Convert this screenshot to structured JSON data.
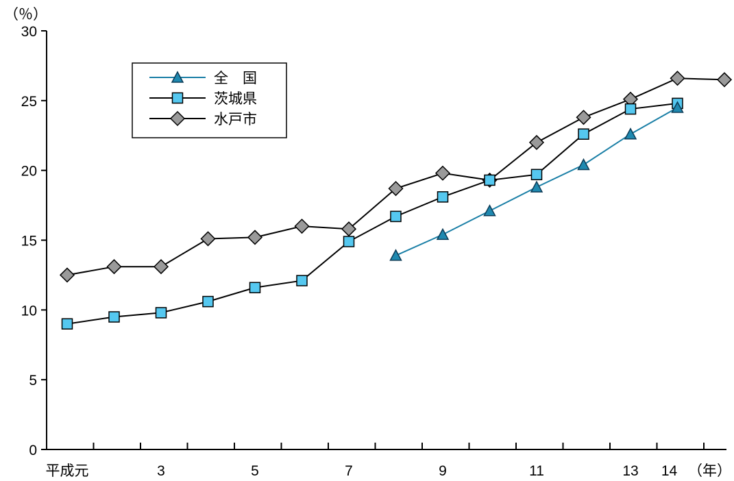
{
  "chart_data": {
    "type": "line",
    "title": "",
    "ylabel_unit": "（％）",
    "xlabel_unit": "（年）",
    "ylim": [
      0,
      30
    ],
    "yticks": [
      "0",
      "5",
      "10",
      "15",
      "20",
      "25",
      "30"
    ],
    "x_ticks_count": 14,
    "x_tick_labels": [
      {
        "index": 0,
        "label": "平成元"
      },
      {
        "index": 2,
        "label": "3"
      },
      {
        "index": 4,
        "label": "5"
      },
      {
        "index": 6,
        "label": "7"
      },
      {
        "index": 8,
        "label": "9"
      },
      {
        "index": 10,
        "label": "11"
      },
      {
        "index": 12,
        "label": "13"
      },
      {
        "index": 13,
        "label": "14"
      }
    ],
    "grid": false,
    "legend_position": "top-left",
    "series": [
      {
        "name": "全　国",
        "marker": "triangle",
        "color": "#1a7fa6",
        "x": [
          7,
          8,
          9,
          10,
          11,
          12,
          13
        ],
        "values": [
          13.9,
          15.4,
          17.1,
          18.8,
          20.4,
          22.6,
          24.5
        ]
      },
      {
        "name": "茨城県",
        "marker": "square",
        "color": "#000000",
        "x": [
          0,
          1,
          2,
          3,
          4,
          5,
          6,
          7,
          8,
          9,
          10,
          11,
          12,
          13
        ],
        "values": [
          9.0,
          9.5,
          9.8,
          10.6,
          11.6,
          12.1,
          14.9,
          16.7,
          18.1,
          19.3,
          19.7,
          22.6,
          24.4,
          24.8
        ]
      },
      {
        "name": "水戸市",
        "marker": "diamond",
        "color": "#000000",
        "x": [
          0,
          1,
          2,
          3,
          4,
          5,
          6,
          7,
          8,
          9,
          10,
          11,
          12,
          13,
          14
        ],
        "values": [
          12.5,
          13.1,
          13.1,
          15.1,
          15.2,
          16.0,
          15.8,
          18.7,
          19.8,
          19.3,
          22.0,
          23.8,
          25.1,
          26.6,
          26.5
        ]
      }
    ]
  }
}
